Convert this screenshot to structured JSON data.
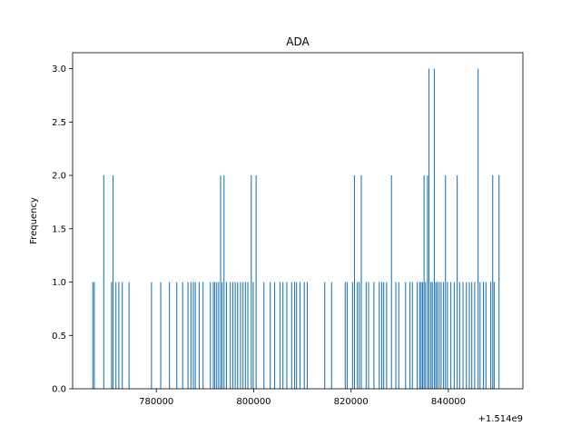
{
  "chart_data": {
    "type": "bar",
    "title": "ADA",
    "ylabel": "Frequency",
    "xlabel": "",
    "x_offset_label": "+1.514e9",
    "xlim": [
      762800,
      855300
    ],
    "ylim": [
      0,
      3.15
    ],
    "x_ticks": [
      780000,
      800000,
      820000,
      840000
    ],
    "x_tick_labels": [
      "780000",
      "800000",
      "820000",
      "840000"
    ],
    "y_ticks": [
      0,
      0.5,
      1.0,
      1.5,
      2.0,
      2.5,
      3.0
    ],
    "y_tick_labels": [
      "0.0",
      "0.5",
      "1.0",
      "1.5",
      "2.0",
      "2.5",
      "3.0"
    ],
    "bar_width": 200,
    "bar_color": "#1f77b4",
    "grid": false,
    "x": [
      766950,
      767250,
      769200,
      770800,
      771100,
      771700,
      772300,
      773000,
      774400,
      779000,
      780900,
      782700,
      784200,
      785400,
      786500,
      787100,
      787600,
      788000,
      788800,
      789600,
      791100,
      791700,
      792000,
      792400,
      792800,
      793200,
      793500,
      793900,
      794400,
      795200,
      795700,
      796200,
      796700,
      797300,
      797800,
      798300,
      798800,
      799500,
      799900,
      800500,
      802100,
      803400,
      804300,
      805400,
      806000,
      806800,
      807800,
      808400,
      808800,
      809500,
      810400,
      811000,
      814600,
      816000,
      818800,
      819200,
      820300,
      820700,
      821300,
      821700,
      822100,
      823100,
      823600,
      824700,
      825800,
      826300,
      826700,
      827300,
      828300,
      829200,
      829800,
      831200,
      832100,
      832600,
      833600,
      834100,
      834400,
      834700,
      835000,
      835300,
      835700,
      836000,
      836400,
      836700,
      837100,
      837400,
      837700,
      838100,
      838500,
      839000,
      839400,
      839800,
      840500,
      841200,
      841800,
      842300,
      843000,
      843700,
      844300,
      844800,
      845400,
      846100,
      846500,
      847200,
      847700,
      848700,
      849100,
      849400,
      850400
    ],
    "values": [
      1,
      1,
      2,
      1,
      2,
      1,
      1,
      1,
      1,
      1,
      1,
      1,
      1,
      1,
      1,
      1,
      1,
      1,
      1,
      1,
      1,
      1,
      1,
      1,
      1,
      2,
      1,
      2,
      1,
      1,
      1,
      1,
      1,
      1,
      1,
      1,
      1,
      2,
      1,
      2,
      1,
      1,
      1,
      1,
      1,
      1,
      1,
      1,
      1,
      1,
      1,
      1,
      1,
      1,
      1,
      1,
      1,
      2,
      1,
      1,
      2,
      1,
      1,
      1,
      1,
      1,
      1,
      1,
      2,
      1,
      1,
      1,
      1,
      1,
      1,
      1,
      1,
      1,
      2,
      1,
      2,
      3,
      1,
      1,
      3,
      1,
      1,
      1,
      1,
      1,
      2,
      1,
      1,
      1,
      2,
      1,
      1,
      1,
      1,
      1,
      1,
      3,
      1,
      1,
      1,
      1,
      2,
      1,
      2
    ]
  }
}
